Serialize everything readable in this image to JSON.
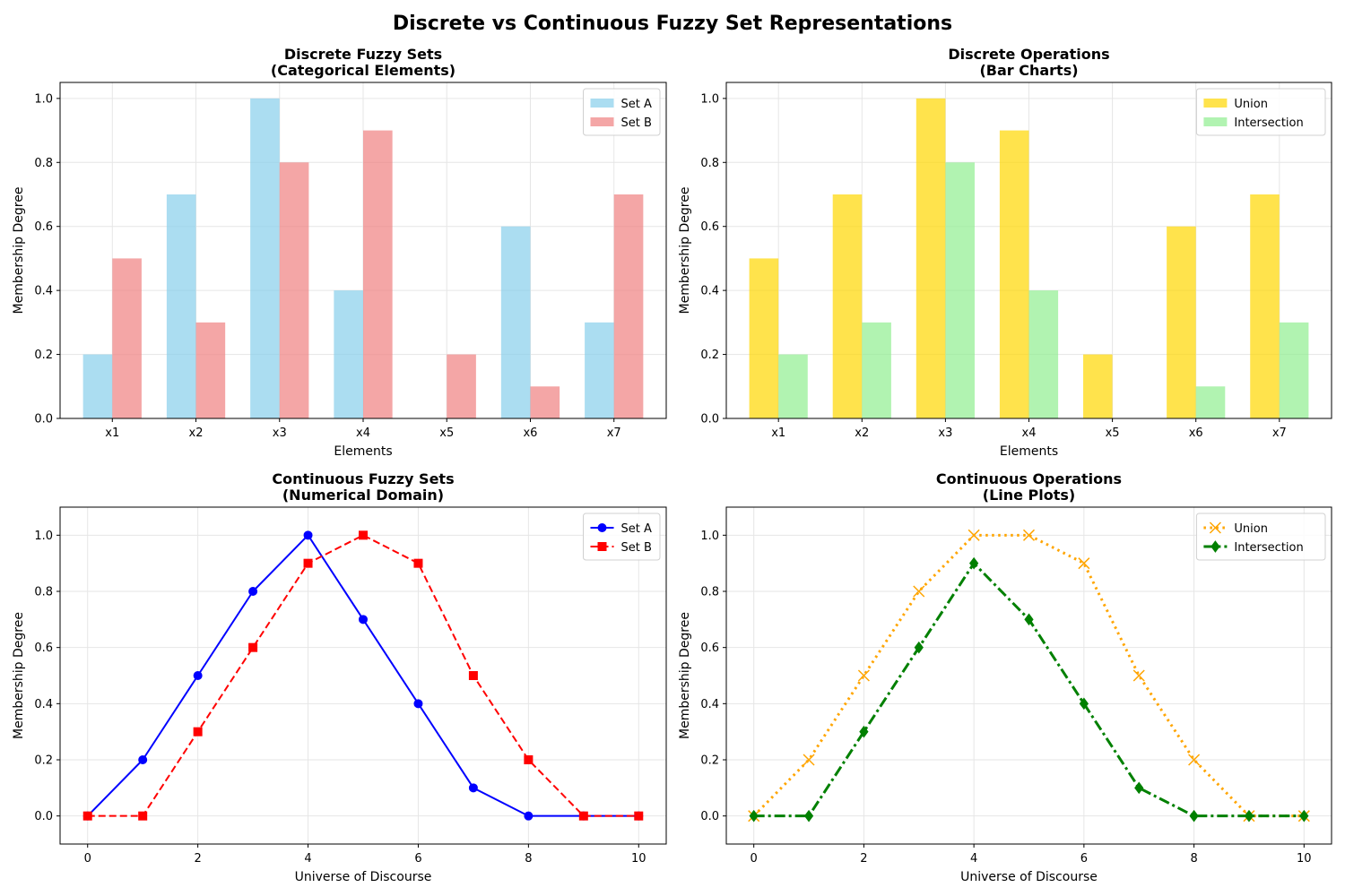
{
  "suptitle": "Discrete vs Continuous Fuzzy Set Representations",
  "chart_data": [
    {
      "type": "bar",
      "title": "Discrete Fuzzy Sets\n(Categorical Elements)",
      "xlabel": "Elements",
      "ylabel": "Membership Degree",
      "categories": [
        "x1",
        "x2",
        "x3",
        "x4",
        "x5",
        "x6",
        "x7"
      ],
      "series": [
        {
          "name": "Set A",
          "values": [
            0.2,
            0.7,
            1.0,
            0.4,
            0.0,
            0.6,
            0.3
          ],
          "color": "#87ceeb"
        },
        {
          "name": "Set B",
          "values": [
            0.5,
            0.3,
            0.8,
            0.9,
            0.2,
            0.1,
            0.7
          ],
          "color": "#f08080"
        }
      ],
      "ylim": [
        0,
        1.05
      ],
      "yticks": [
        "0.0",
        "0.2",
        "0.4",
        "0.6",
        "0.8",
        "1.0"
      ],
      "grid": true,
      "legend": "top-right"
    },
    {
      "type": "bar",
      "title": "Discrete Operations\n(Bar Charts)",
      "xlabel": "Elements",
      "ylabel": "Membership Degree",
      "categories": [
        "x1",
        "x2",
        "x3",
        "x4",
        "x5",
        "x6",
        "x7"
      ],
      "series": [
        {
          "name": "Union",
          "values": [
            0.5,
            0.7,
            1.0,
            0.9,
            0.2,
            0.6,
            0.7
          ],
          "color": "#ffd700"
        },
        {
          "name": "Intersection",
          "values": [
            0.2,
            0.3,
            0.8,
            0.4,
            0.0,
            0.1,
            0.3
          ],
          "color": "#90ee90"
        }
      ],
      "ylim": [
        0,
        1.05
      ],
      "yticks": [
        "0.0",
        "0.2",
        "0.4",
        "0.6",
        "0.8",
        "1.0"
      ],
      "grid": true,
      "legend": "top-right"
    },
    {
      "type": "line",
      "title": "Continuous Fuzzy Sets\n(Numerical Domain)",
      "xlabel": "Universe of Discourse",
      "ylabel": "Membership Degree",
      "x": [
        0,
        1,
        2,
        3,
        4,
        5,
        6,
        7,
        8,
        9,
        10
      ],
      "series": [
        {
          "name": "Set A",
          "values": [
            0,
            0.2,
            0.5,
            0.8,
            1.0,
            0.7,
            0.4,
            0.1,
            0,
            0,
            0
          ],
          "color": "#0000ff",
          "style": "solid",
          "marker": "circle"
        },
        {
          "name": "Set B",
          "values": [
            0,
            0,
            0.3,
            0.6,
            0.9,
            1.0,
            0.9,
            0.5,
            0.2,
            0,
            0
          ],
          "color": "#ff0000",
          "style": "dashed",
          "marker": "square"
        }
      ],
      "xlim": [
        -0.5,
        10.5
      ],
      "ylim": [
        -0.1,
        1.1
      ],
      "xticks": [
        "0",
        "2",
        "4",
        "6",
        "8",
        "10"
      ],
      "yticks": [
        "0.0",
        "0.2",
        "0.4",
        "0.6",
        "0.8",
        "1.0"
      ],
      "grid": true,
      "legend": "top-right"
    },
    {
      "type": "line",
      "title": "Continuous Operations\n(Line Plots)",
      "xlabel": "Universe of Discourse",
      "ylabel": "Membership Degree",
      "x": [
        0,
        1,
        2,
        3,
        4,
        5,
        6,
        7,
        8,
        9,
        10
      ],
      "series": [
        {
          "name": "Union",
          "values": [
            0,
            0.2,
            0.5,
            0.8,
            1.0,
            1.0,
            0.9,
            0.5,
            0.2,
            0,
            0
          ],
          "color": "#ffa500",
          "style": "dotted",
          "marker": "x"
        },
        {
          "name": "Intersection",
          "values": [
            0,
            0,
            0.3,
            0.6,
            0.9,
            0.7,
            0.4,
            0.1,
            0,
            0,
            0
          ],
          "color": "#008000",
          "style": "dashdot",
          "marker": "diamond"
        }
      ],
      "xlim": [
        -0.5,
        10.5
      ],
      "ylim": [
        -0.1,
        1.1
      ],
      "xticks": [
        "0",
        "2",
        "4",
        "6",
        "8",
        "10"
      ],
      "yticks": [
        "0.0",
        "0.2",
        "0.4",
        "0.6",
        "0.8",
        "1.0"
      ],
      "grid": true,
      "legend": "top-right"
    }
  ]
}
